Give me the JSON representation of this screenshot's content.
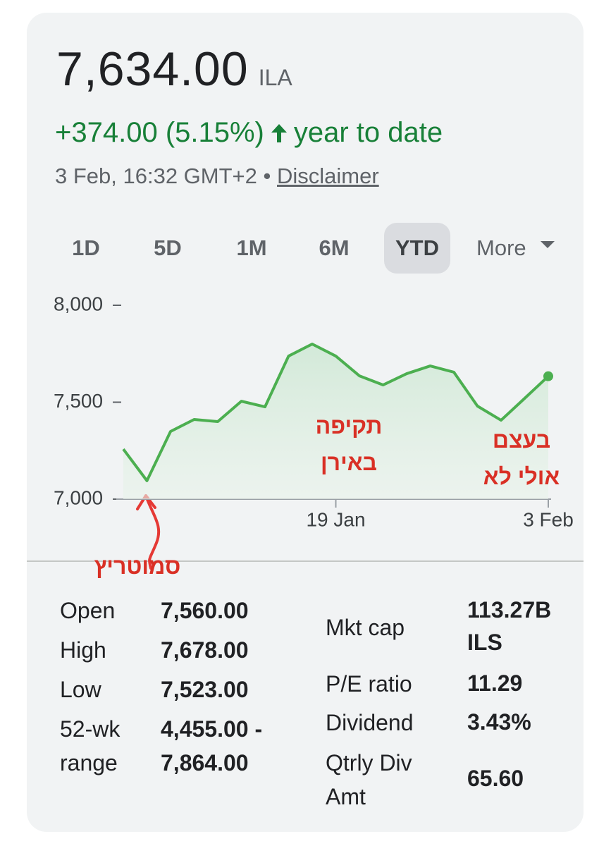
{
  "header": {
    "price": "7,634.00",
    "currency": "ILA",
    "change": "+374.00 (5.15%)",
    "period": "year to date",
    "timestamp": "3 Feb, 16:32 GMT+2 •",
    "disclaimer": "Disclaimer"
  },
  "ranges": [
    "1D",
    "5D",
    "1M",
    "6M",
    "YTD",
    "More"
  ],
  "selected_range": 4,
  "chart_data": {
    "type": "line",
    "categories": [
      null,
      null,
      null,
      null,
      null,
      null,
      null,
      null,
      null,
      "19 Jan",
      null,
      null,
      null,
      null,
      null,
      null,
      null,
      null,
      "3 Feb"
    ],
    "series": [
      {
        "color": "#4caf50",
        "values": [
          7258,
          7095,
          7349,
          7411,
          7400,
          7505,
          7476,
          7738,
          7800,
          7738,
          7636,
          7589,
          7647,
          7687,
          7655,
          7480,
          7407,
          7520,
          7634
        ]
      }
    ],
    "ylim": [
      7000,
      8000
    ],
    "yticks": [
      {
        "value": 7000,
        "label": "7,000"
      },
      {
        "value": 7500,
        "label": "7,500"
      },
      {
        "value": 8000,
        "label": "8,000"
      }
    ],
    "grid": false
  },
  "annotations": [
    {
      "lines": [
        "סמוטריץ"
      ]
    },
    {
      "lines": [
        "תקיפה",
        "באירן"
      ]
    },
    {
      "lines": [
        "בעצם",
        "אולי לא"
      ]
    }
  ],
  "stats": {
    "left": [
      {
        "label": "Open",
        "value": "7,560.00"
      },
      {
        "label": "High",
        "value": "7,678.00"
      },
      {
        "label": "Low",
        "value": "7,523.00"
      },
      {
        "label": "52-wk range",
        "value": "4,455.00 - 7,864.00"
      }
    ],
    "right": [
      {
        "label": "Mkt cap",
        "value": "113.27B ILS"
      },
      {
        "label": "P/E ratio",
        "value": "11.29"
      },
      {
        "label": "Dividend",
        "value": "3.43%"
      },
      {
        "label": "Qtrly Div Amt",
        "value": "65.60"
      }
    ]
  }
}
